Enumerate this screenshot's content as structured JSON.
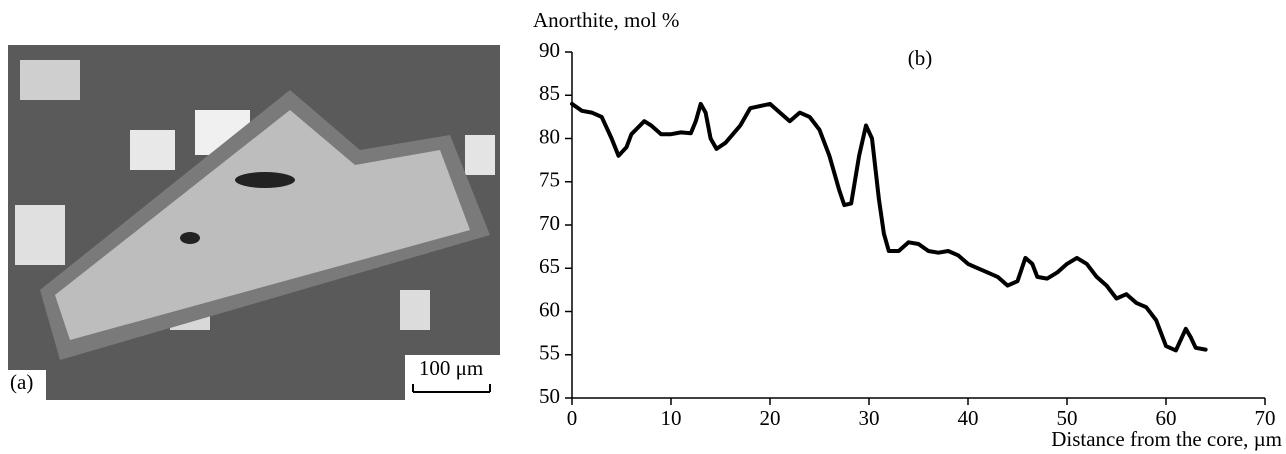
{
  "panel_a": {
    "label": "(a)",
    "scale_bar": "100 μm"
  },
  "chart_data": {
    "type": "line",
    "annotation": "(b)",
    "y_label": "Anorthite, mol %",
    "x_label": "Distance from the core, µm",
    "x": [
      0,
      1,
      2,
      3,
      4,
      4.7,
      5.5,
      6,
      7.3,
      8,
      9,
      10,
      11,
      12,
      12.5,
      13,
      13.5,
      14,
      14.6,
      15.5,
      17,
      18,
      20,
      21,
      22,
      23,
      24,
      25,
      26,
      27,
      27.5,
      28.2,
      29,
      29.7,
      30.3,
      31,
      31.5,
      32,
      33,
      34,
      35,
      36,
      37,
      38,
      39,
      40,
      41,
      42,
      43,
      44,
      45,
      45.8,
      46.5,
      47,
      48,
      49,
      50,
      51,
      52,
      53,
      54,
      55,
      56,
      57,
      58,
      59,
      60,
      61,
      62,
      62.5,
      63,
      64
    ],
    "values": [
      84,
      83.2,
      83,
      82.5,
      80,
      78,
      79,
      80.5,
      82,
      81.5,
      80.5,
      80.5,
      80.7,
      80.6,
      82,
      84,
      83,
      80,
      78.8,
      79.5,
      81.5,
      83.5,
      84,
      83,
      82,
      83,
      82.5,
      81,
      78,
      74,
      72.3,
      72.5,
      78,
      81.5,
      80,
      73,
      69,
      67,
      67,
      68,
      67.8,
      67,
      66.8,
      67,
      66.5,
      65.5,
      65,
      64.5,
      64,
      63,
      63.5,
      66.2,
      65.5,
      64,
      63.8,
      64.5,
      65.5,
      66.2,
      65.5,
      64,
      63,
      61.5,
      62,
      61,
      60.5,
      59,
      56,
      55.5,
      58,
      57,
      55.8,
      55.6
    ],
    "color": "#000000",
    "xlim": [
      0,
      70
    ],
    "xticks": [
      0,
      10,
      20,
      30,
      40,
      50,
      60,
      70
    ],
    "ylim": [
      50,
      90
    ],
    "yticks": [
      50,
      55,
      60,
      65,
      70,
      75,
      80,
      85,
      90
    ]
  }
}
